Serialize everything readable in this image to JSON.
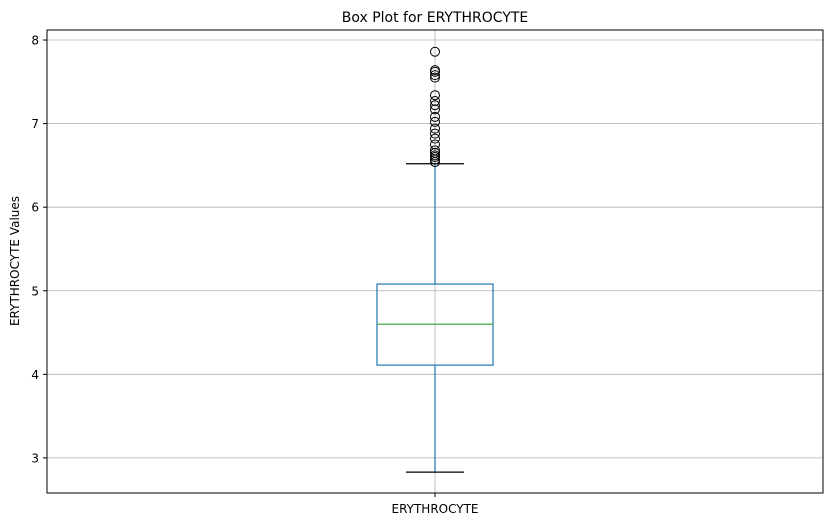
{
  "chart_data": {
    "type": "box",
    "title": "Box Plot for ERYTHROCYTE",
    "xlabel": "",
    "ylabel": "ERYTHROCYTE Values",
    "categories": [
      "ERYTHROCYTE"
    ],
    "ylim": [
      2.58,
      8.12
    ],
    "yticks": [
      3,
      4,
      5,
      6,
      7,
      8
    ],
    "grid": true,
    "box": {
      "whisker_low": 2.83,
      "q1": 4.11,
      "median": 4.6,
      "q3": 5.08,
      "whisker_high": 6.52,
      "outliers": [
        6.54,
        6.57,
        6.6,
        6.62,
        6.65,
        6.68,
        6.75,
        6.82,
        6.88,
        6.94,
        7.02,
        7.08,
        7.17,
        7.22,
        7.27,
        7.34,
        7.55,
        7.58,
        7.62,
        7.64,
        7.86
      ]
    },
    "colors": {
      "box": "#1f77b4",
      "median": "#2ca02c",
      "whisker_cap": "#000000",
      "outlier": "#000000",
      "grid": "#b0b0b0"
    }
  }
}
